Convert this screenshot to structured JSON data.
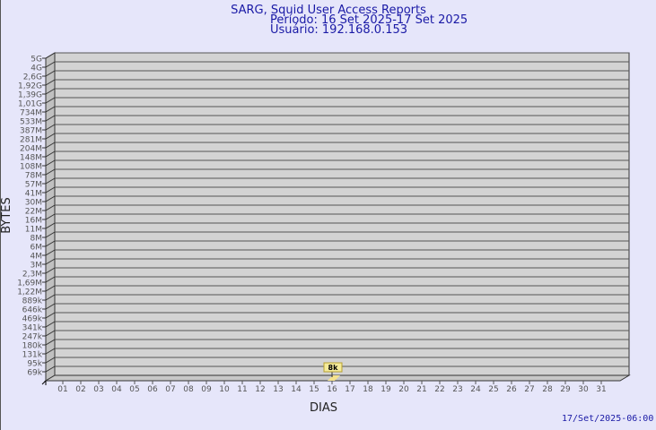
{
  "chart_data": {
    "type": "bar",
    "title": "SARG, Squid User Access Reports",
    "subtitle_period": "Período: 16 Set 2025-17 Set 2025",
    "subtitle_user": "Usuário: 192.168.0.153",
    "xlabel": "DIAS",
    "ylabel": "BYTES",
    "y_tick_labels": [
      "5G",
      "4G",
      "2,6G",
      "1,92G",
      "1,39G",
      "1,01G",
      "734M",
      "533M",
      "387M",
      "281M",
      "204M",
      "148M",
      "108M",
      "78M",
      "57M",
      "41M",
      "30M",
      "22M",
      "16M",
      "11M",
      "8M",
      "6M",
      "4M",
      "3M",
      "2,3M",
      "1,69M",
      "1,22M",
      "889k",
      "646k",
      "469k",
      "341k",
      "247k",
      "180k",
      "131k",
      "95k",
      "69k"
    ],
    "categories": [
      "01",
      "02",
      "03",
      "04",
      "05",
      "06",
      "07",
      "08",
      "09",
      "10",
      "11",
      "12",
      "13",
      "14",
      "15",
      "16",
      "17",
      "18",
      "19",
      "20",
      "21",
      "22",
      "23",
      "24",
      "25",
      "26",
      "27",
      "28",
      "29",
      "30",
      "31"
    ],
    "values": [
      {
        "day": "16",
        "label": "8k",
        "bytes": 8000
      }
    ],
    "y_scale": "log",
    "grid": true,
    "timestamp": "17/Set/2025-06:00",
    "colors": {
      "background": "#e6e6fa",
      "plot": "#d3d3d3",
      "title": "#1a1aa6",
      "bar": "#f5e28c",
      "label_box": "#f5eb9a"
    }
  }
}
